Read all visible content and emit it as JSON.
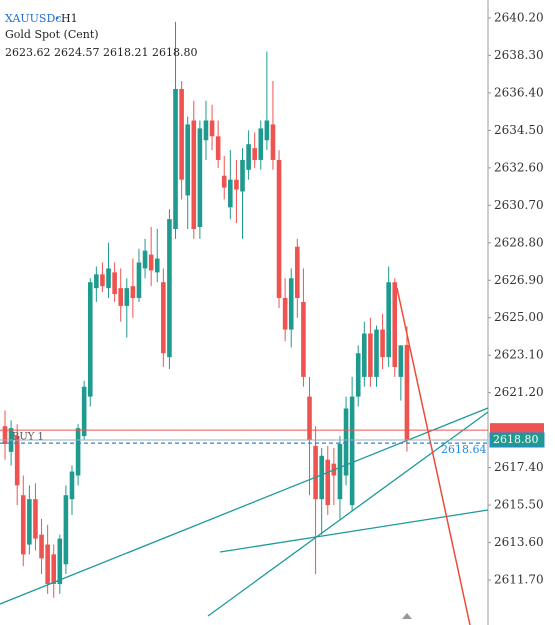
{
  "header": {
    "symbol": "XAUUSDc",
    "timeframe": "H1",
    "description": "Gold Spot (Cent)",
    "ohlc_label": "2623.62 2624.57 2618.21 2618.80"
  },
  "chart_data": {
    "type": "candlestick",
    "up_color": "#1e9a8e",
    "down_color": "#ef5350",
    "ylim": [
      2609.42,
      2641.11
    ],
    "yticks": [
      {
        "value": 2640.2,
        "label": "2640.20"
      },
      {
        "value": 2638.3,
        "label": "2638.30"
      },
      {
        "value": 2636.4,
        "label": "2636.40"
      },
      {
        "value": 2634.5,
        "label": "2634.50"
      },
      {
        "value": 2632.6,
        "label": "2632.60"
      },
      {
        "value": 2630.7,
        "label": "2630.70"
      },
      {
        "value": 2628.8,
        "label": "2628.80"
      },
      {
        "value": 2626.9,
        "label": "2626.90"
      },
      {
        "value": 2625.0,
        "label": "2625.00"
      },
      {
        "value": 2623.1,
        "label": "2623.10"
      },
      {
        "value": 2621.2,
        "label": "2621.20"
      },
      {
        "value": 2617.4,
        "label": "2617.40"
      },
      {
        "value": 2615.5,
        "label": "2615.50"
      },
      {
        "value": 2613.6,
        "label": "2613.60"
      },
      {
        "value": 2611.7,
        "label": "2611.70"
      }
    ],
    "open": [
      2619.5,
      2618.2,
      2619.0,
      2616.0,
      2613.5,
      2615.8,
      2614.0,
      2613.5,
      2613.0,
      2611.5,
      2612.5,
      2615.8,
      2617.0,
      2619.0,
      2621.0,
      2626.5,
      2627.2,
      2626.5,
      2627.3,
      2626.5,
      2625.6,
      2626.6,
      2626.0,
      2627.5,
      2628.2,
      2627.3,
      2626.8,
      2623.0,
      2629.5,
      2636.6,
      2631.2,
      2635.0,
      2629.6,
      2634.0,
      2635.0,
      2634.2,
      2632.2,
      2630.6,
      2632.0,
      2631.4,
      2632.5,
      2633.6,
      2633.0,
      2634.0,
      2634.8,
      2633.0,
      2626.0,
      2624.4,
      2628.6,
      2625.8,
      2621.0,
      2618.5,
      2615.8,
      2617.8,
      2617.6,
      2615.8,
      2617.0,
      2615.5,
      2621.0,
      2622.0,
      2624.2,
      2622.0,
      2624.4,
      2623.0,
      2626.8,
      2622.0,
      2623.62
    ],
    "high": [
      2620.3,
      2619.8,
      2619.6,
      2617.0,
      2616.5,
      2616.6,
      2614.8,
      2614.5,
      2613.5,
      2614.0,
      2616.5,
      2617.5,
      2619.6,
      2621.8,
      2627.0,
      2627.6,
      2627.8,
      2628.8,
      2627.8,
      2627.5,
      2627.0,
      2628.0,
      2628.5,
      2629.0,
      2629.6,
      2629.5,
      2627.5,
      2630.5,
      2640.0,
      2637.0,
      2635.2,
      2636.0,
      2635.0,
      2636.0,
      2635.8,
      2635.0,
      2633.2,
      2633.5,
      2633.0,
      2633.6,
      2634.5,
      2634.4,
      2635.0,
      2638.5,
      2637.0,
      2633.5,
      2627.0,
      2627.5,
      2629.0,
      2627.5,
      2622.0,
      2619.5,
      2618.4,
      2618.5,
      2618.4,
      2619.0,
      2621.0,
      2622.0,
      2623.6,
      2624.8,
      2625.0,
      2624.6,
      2625.2,
      2627.6,
      2627.0,
      2623.6,
      2624.57
    ],
    "low": [
      2617.8,
      2617.5,
      2615.5,
      2612.4,
      2613.0,
      2613.2,
      2612.0,
      2611.0,
      2610.8,
      2611.0,
      2612.0,
      2615.0,
      2616.5,
      2618.8,
      2620.5,
      2625.8,
      2626.3,
      2626.0,
      2625.8,
      2624.8,
      2624.0,
      2625.0,
      2625.8,
      2627.0,
      2626.6,
      2626.8,
      2622.5,
      2622.4,
      2629.0,
      2631.0,
      2629.5,
      2629.0,
      2629.0,
      2633.0,
      2633.5,
      2632.6,
      2631.0,
      2630.0,
      2629.8,
      2629.0,
      2632.0,
      2632.6,
      2632.5,
      2633.5,
      2632.5,
      2625.5,
      2623.8,
      2623.5,
      2625.0,
      2621.5,
      2616.0,
      2612.0,
      2614.0,
      2615.0,
      2615.5,
      2614.8,
      2616.5,
      2615.2,
      2620.5,
      2621.5,
      2621.5,
      2621.5,
      2622.4,
      2622.5,
      2622.0,
      2620.8,
      2618.21
    ],
    "close": [
      2618.6,
      2619.4,
      2616.5,
      2613.0,
      2615.8,
      2613.8,
      2612.8,
      2611.5,
      2611.5,
      2613.8,
      2616.0,
      2617.2,
      2619.4,
      2621.5,
      2626.8,
      2627.2,
      2626.6,
      2627.5,
      2626.2,
      2625.6,
      2626.5,
      2626.0,
      2627.8,
      2628.4,
      2627.4,
      2628.0,
      2623.2,
      2630.0,
      2636.6,
      2632.0,
      2634.8,
      2629.5,
      2634.6,
      2635.0,
      2634.2,
      2633.0,
      2631.6,
      2632.0,
      2631.5,
      2633.0,
      2633.8,
      2633.0,
      2634.6,
      2635.0,
      2633.0,
      2626.0,
      2624.4,
      2627.0,
      2626.0,
      2622.0,
      2618.8,
      2615.8,
      2618.0,
      2615.5,
      2617.0,
      2618.6,
      2620.4,
      2621.0,
      2623.2,
      2624.2,
      2622.0,
      2624.4,
      2623.0,
      2626.8,
      2622.5,
      2623.6,
      2618.8
    ],
    "ask_line": 2619.3,
    "buy_line": {
      "label": "BUY 1",
      "price": 2618.64
    },
    "bid_tag": {
      "value": 2618.8,
      "label": "2618.80"
    }
  }
}
